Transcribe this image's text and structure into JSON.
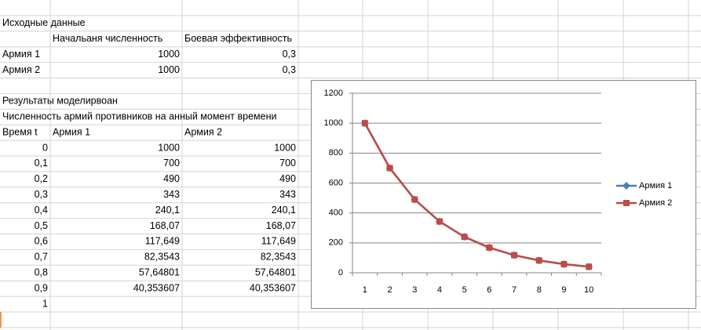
{
  "sheet": {
    "rows": [
      [
        "Исходные данные"
      ],
      [
        null,
        "Начальаня численность",
        "Боевая эффективность"
      ],
      [
        "Армия 1",
        "1000",
        "0,3"
      ],
      [
        "Армия 2",
        "1000",
        "0,3"
      ],
      null,
      [
        "Результаты моделирвоан"
      ],
      [
        "Численность армий противников на анный момент времени"
      ],
      [
        "Время t",
        "Армия 1",
        "Армия 2"
      ],
      [
        "0",
        "1000",
        "1000"
      ],
      [
        "0,1",
        "700",
        "700"
      ],
      [
        "0,2",
        "490",
        "490"
      ],
      [
        "0,3",
        "343",
        "343"
      ],
      [
        "0,4",
        "240,1",
        "240,1"
      ],
      [
        "0,5",
        "168,07",
        "168,07"
      ],
      [
        "0,6",
        "117,649",
        "117,649"
      ],
      [
        "0,7",
        "82,3543",
        "82,3543"
      ],
      [
        "0,8",
        "57,64801",
        "57,64801"
      ],
      [
        "0,9",
        "40,353607",
        "40,353607"
      ],
      [
        "1"
      ]
    ]
  },
  "chart_data": {
    "type": "line",
    "categories": [
      1,
      2,
      3,
      4,
      5,
      6,
      7,
      8,
      9,
      10
    ],
    "series": [
      {
        "name": "Армия 1",
        "color": "#4a7ebb",
        "marker": "diamond",
        "values": [
          1000,
          700,
          490,
          343,
          240.1,
          168.07,
          117.649,
          82.3543,
          57.64801,
          40.353607
        ]
      },
      {
        "name": "Армия 2",
        "color": "#be4b48",
        "marker": "square",
        "values": [
          1000,
          700,
          490,
          343,
          240.1,
          168.07,
          117.649,
          82.3543,
          57.64801,
          40.353607
        ]
      }
    ],
    "ylim": [
      0,
      1200
    ],
    "yticks": [
      0,
      200,
      400,
      600,
      800,
      1000,
      1200
    ],
    "grid": true,
    "legend": "right"
  }
}
